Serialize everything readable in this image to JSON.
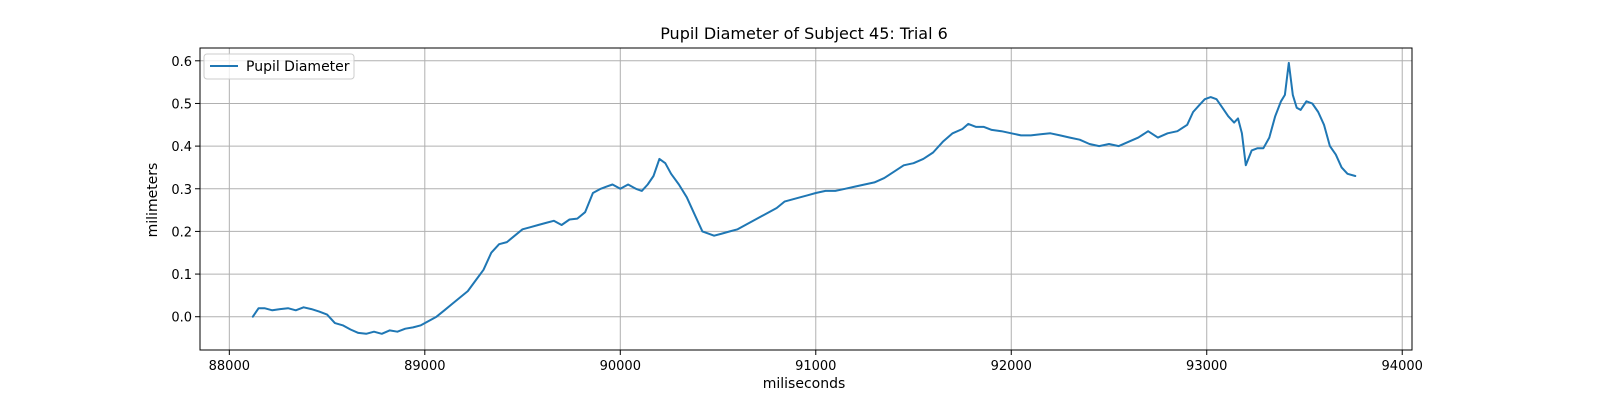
{
  "chart_data": {
    "type": "line",
    "title": "Pupil Diameter of Subject 45: Trial 6",
    "xlabel": "miliseconds",
    "ylabel": "milimeters",
    "xlim": [
      87850,
      94050
    ],
    "ylim": [
      -0.078,
      0.63
    ],
    "xticks": [
      88000,
      89000,
      90000,
      91000,
      92000,
      93000,
      94000
    ],
    "yticks": [
      0.0,
      0.1,
      0.2,
      0.3,
      0.4,
      0.5,
      0.6
    ],
    "ytick_labels": [
      "0.0",
      "0.1",
      "0.2",
      "0.3",
      "0.4",
      "0.5",
      "0.6"
    ],
    "grid": true,
    "legend_position": "top-left",
    "series": [
      {
        "name": "Pupil Diameter",
        "color": "#1f77b4",
        "x": [
          88120,
          88150,
          88180,
          88220,
          88260,
          88300,
          88340,
          88380,
          88420,
          88460,
          88500,
          88540,
          88580,
          88620,
          88660,
          88700,
          88740,
          88780,
          88820,
          88860,
          88900,
          88940,
          88980,
          89020,
          89060,
          89100,
          89140,
          89180,
          89220,
          89260,
          89300,
          89340,
          89380,
          89420,
          89460,
          89500,
          89540,
          89580,
          89620,
          89660,
          89700,
          89740,
          89780,
          89820,
          89860,
          89900,
          89930,
          89960,
          90000,
          90040,
          90080,
          90110,
          90140,
          90170,
          90200,
          90230,
          90260,
          90300,
          90340,
          90380,
          90420,
          90450,
          90480,
          90520,
          90560,
          90600,
          90640,
          90680,
          90720,
          90760,
          90800,
          90840,
          90880,
          90920,
          90960,
          91000,
          91050,
          91100,
          91150,
          91200,
          91250,
          91300,
          91350,
          91400,
          91450,
          91500,
          91550,
          91600,
          91650,
          91700,
          91750,
          91780,
          91820,
          91860,
          91900,
          91950,
          92000,
          92050,
          92100,
          92150,
          92200,
          92250,
          92300,
          92350,
          92400,
          92450,
          92500,
          92550,
          92600,
          92650,
          92700,
          92750,
          92800,
          92850,
          92900,
          92930,
          92960,
          92990,
          93020,
          93050,
          93080,
          93110,
          93140,
          93160,
          93180,
          93200,
          93230,
          93260,
          93290,
          93320,
          93350,
          93380,
          93400,
          93420,
          93440,
          93460,
          93480,
          93510,
          93540,
          93570,
          93600,
          93630,
          93660,
          93690,
          93720,
          93760
        ],
        "values": [
          0.0,
          0.02,
          0.02,
          0.015,
          0.018,
          0.02,
          0.015,
          0.022,
          0.018,
          0.012,
          0.005,
          -0.015,
          -0.02,
          -0.03,
          -0.038,
          -0.04,
          -0.035,
          -0.04,
          -0.032,
          -0.035,
          -0.028,
          -0.025,
          -0.02,
          -0.01,
          0.0,
          0.015,
          0.03,
          0.045,
          0.06,
          0.085,
          0.11,
          0.15,
          0.17,
          0.175,
          0.19,
          0.205,
          0.21,
          0.215,
          0.22,
          0.225,
          0.215,
          0.228,
          0.23,
          0.245,
          0.29,
          0.3,
          0.305,
          0.31,
          0.3,
          0.31,
          0.3,
          0.295,
          0.31,
          0.33,
          0.37,
          0.36,
          0.335,
          0.31,
          0.28,
          0.24,
          0.2,
          0.195,
          0.19,
          0.195,
          0.2,
          0.205,
          0.215,
          0.225,
          0.235,
          0.245,
          0.255,
          0.27,
          0.275,
          0.28,
          0.285,
          0.29,
          0.295,
          0.295,
          0.3,
          0.305,
          0.31,
          0.315,
          0.325,
          0.34,
          0.355,
          0.36,
          0.37,
          0.385,
          0.41,
          0.43,
          0.44,
          0.452,
          0.445,
          0.445,
          0.438,
          0.435,
          0.43,
          0.425,
          0.425,
          0.428,
          0.43,
          0.425,
          0.42,
          0.415,
          0.405,
          0.4,
          0.405,
          0.4,
          0.41,
          0.42,
          0.435,
          0.42,
          0.43,
          0.435,
          0.45,
          0.48,
          0.495,
          0.51,
          0.515,
          0.51,
          0.49,
          0.47,
          0.455,
          0.465,
          0.43,
          0.355,
          0.39,
          0.395,
          0.395,
          0.42,
          0.47,
          0.505,
          0.52,
          0.595,
          0.52,
          0.49,
          0.485,
          0.505,
          0.5,
          0.48,
          0.45,
          0.4,
          0.38,
          0.35,
          0.335,
          0.33
        ]
      }
    ]
  }
}
